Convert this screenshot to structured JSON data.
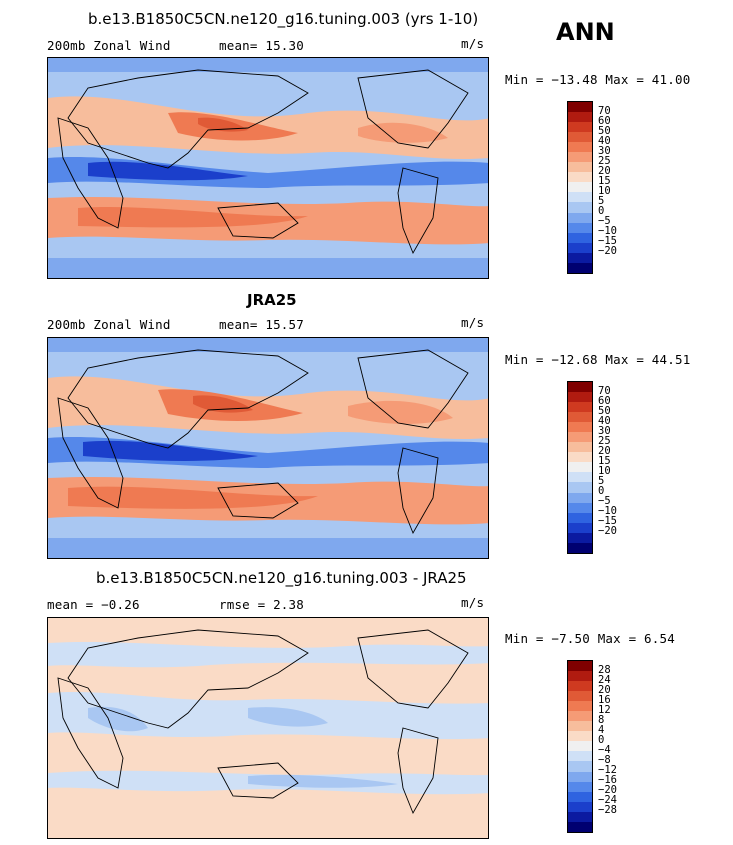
{
  "season": "ANN",
  "panels": [
    {
      "title": "b.e13.B1850C5CN.ne120_g16.tuning.003 (yrs 1-10)",
      "left_label": "200mb  Zonal Wind",
      "mid_label": "mean=   15.30",
      "units": "m/s",
      "minmax": "Min = −13.48 Max =  41.00",
      "colors": [
        "#7f0000",
        "#b01b10",
        "#cf3a20",
        "#e05a36",
        "#ef7a52",
        "#f59b76",
        "#f7bd9c",
        "#fadbc6",
        "#f0f0f0",
        "#cfe0f6",
        "#a9c7f2",
        "#7fa8ee",
        "#5588ea",
        "#2f63e0",
        "#1b3fcb",
        "#0b1aa0",
        "#000070"
      ],
      "labels": [
        "70",
        "60",
        "50",
        "40",
        "30",
        "25",
        "20",
        "15",
        "10",
        "5",
        "0",
        "−5",
        "−10",
        "−15",
        "−20"
      ]
    },
    {
      "title": "JRA25",
      "left_label": "200mb  Zonal Wind",
      "mid_label": "mean=   15.57",
      "units": "m/s",
      "minmax": "Min = −12.68 Max =  44.51",
      "colors": [
        "#7f0000",
        "#b01b10",
        "#cf3a20",
        "#e05a36",
        "#ef7a52",
        "#f59b76",
        "#f7bd9c",
        "#fadbc6",
        "#f0f0f0",
        "#cfe0f6",
        "#a9c7f2",
        "#7fa8ee",
        "#5588ea",
        "#2f63e0",
        "#1b3fcb",
        "#0b1aa0",
        "#000070"
      ],
      "labels": [
        "70",
        "60",
        "50",
        "40",
        "30",
        "25",
        "20",
        "15",
        "10",
        "5",
        "0",
        "−5",
        "−10",
        "−15",
        "−20"
      ]
    },
    {
      "title": "b.e13.B1850C5CN.ne120_g16.tuning.003 - JRA25",
      "left_label": "mean =   −0.26",
      "mid_label": "rmse =    2.38",
      "units": "m/s",
      "minmax": "Min =  −7.50 Max =   6.54",
      "colors": [
        "#7f0000",
        "#b01b10",
        "#cf3a20",
        "#e05a36",
        "#ef7a52",
        "#f59b76",
        "#f7bd9c",
        "#fadbc6",
        "#f0f0f0",
        "#cfe0f6",
        "#a9c7f2",
        "#7fa8ee",
        "#5588ea",
        "#2f63e0",
        "#1b3fcb",
        "#0b1aa0",
        "#000070"
      ],
      "labels": [
        "28",
        "24",
        "20",
        "16",
        "12",
        "8",
        "4",
        "0",
        "−4",
        "−8",
        "−12",
        "−16",
        "−20",
        "−24",
        "−28"
      ]
    }
  ]
}
